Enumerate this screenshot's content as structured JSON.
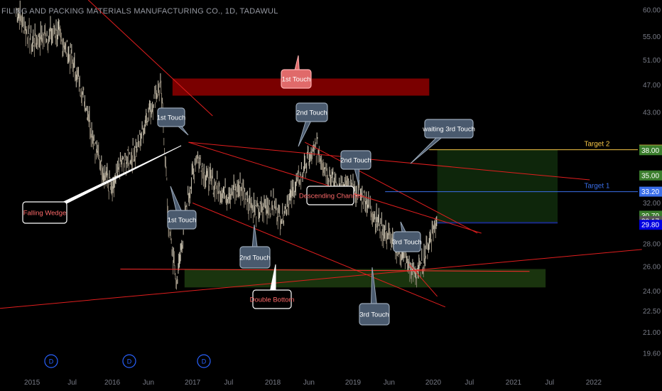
{
  "header": {
    "title": "FILING AND PACKING MATERIALS MANUFACTURING CO., 1D, TADAWUL"
  },
  "colors": {
    "background": "#000000",
    "trendline": "#e01e1e",
    "support_line": "#ff2a2a",
    "resistance_zone": "#7a0000",
    "support_zone": "#1d3a10",
    "target_zone": "#0f2a0c",
    "target2": "#f6c646",
    "target1": "#3a6ee8",
    "callout_dark": "#4a5a6e",
    "callout_red": "#e06a6a",
    "callout_white": "#ffffff"
  },
  "chart_data": {
    "type": "line",
    "title": "FILING AND PACKING MATERIALS MANUFACTURING CO., 1D, TADAWUL",
    "x_ticks": [
      "2015",
      "Jul",
      "2016",
      "Jun",
      "2017",
      "Jul",
      "2018",
      "Jun",
      "2019",
      "Jun",
      "2020",
      "Jul",
      "2021",
      "Jul",
      "2022"
    ],
    "y_ticks": [
      "60.00",
      "55.00",
      "51.00",
      "47.00",
      "43.00",
      "38.00",
      "35.00",
      "32.00",
      "30.00",
      "28.00",
      "26.00",
      "24.00",
      "22.50",
      "21.00",
      "19.60"
    ],
    "ylim": [
      18.5,
      62
    ],
    "log_scale": true,
    "grid": false,
    "price_x": [
      2014.8,
      2015.0,
      2015.3,
      2015.5,
      2015.65,
      2015.8,
      2016.0,
      2016.1,
      2016.3,
      2016.45,
      2016.6,
      2016.7,
      2016.8,
      2016.9,
      2017.05,
      2017.2,
      2017.4,
      2017.6,
      2017.8,
      2018.0,
      2018.1,
      2018.25,
      2018.4,
      2018.55,
      2018.65,
      2018.8,
      2019.0,
      2019.15,
      2019.3,
      2019.45,
      2019.6,
      2019.75,
      2019.85,
      2019.92,
      2020.0,
      2020.05
    ],
    "price_y": [
      60.0,
      54.0,
      56.0,
      51.0,
      45.0,
      38.0,
      33.0,
      36.0,
      38.0,
      43.0,
      47.0,
      30.0,
      24.5,
      30.0,
      37.5,
      34.5,
      33.0,
      33.5,
      31.0,
      32.0,
      30.5,
      33.0,
      36.0,
      38.5,
      36.0,
      33.5,
      33.5,
      32.5,
      30.0,
      28.5,
      27.0,
      25.5,
      25.8,
      27.5,
      29.5,
      30.2
    ],
    "annotations": {
      "target2_label": "Target 2",
      "target1_label": "Target 1",
      "price_tags": [
        {
          "text": "38.06",
          "value": 38.06,
          "color": "#f6c646",
          "text_color": "#000000"
        },
        {
          "text": "38.00",
          "value": 38.0,
          "color": "#3a7d2c",
          "text_color": "#ffffff"
        },
        {
          "text": "35.00",
          "value": 35.0,
          "color": "#3a7d2c",
          "text_color": "#ffffff"
        },
        {
          "text": "33.20",
          "value": 33.2,
          "color": "#3a6ee8",
          "text_color": "#ffffff"
        },
        {
          "text": "30.70",
          "value": 30.7,
          "color": "#3a7d2c",
          "text_color": "#ffffff"
        },
        {
          "text": "30.17",
          "value": 30.17,
          "color": "#555555",
          "text_color": "#ffffff"
        },
        {
          "text": "29.80",
          "value": 29.8,
          "color": "#0000e0",
          "text_color": "#ffffff"
        }
      ],
      "callouts": [
        {
          "text": "1st Touch",
          "style": "dark"
        },
        {
          "text": "1st Touch",
          "style": "red"
        },
        {
          "text": "2nd Touch",
          "style": "dark"
        },
        {
          "text": "waiting 3rd Touch",
          "style": "dark"
        },
        {
          "text": "2nd Touch",
          "style": "dark"
        },
        {
          "text": "Descending Channel",
          "style": "outline"
        },
        {
          "text": "Falling Wedge",
          "style": "outline"
        },
        {
          "text": "1st Touch",
          "style": "dark"
        },
        {
          "text": "2nd Touch",
          "style": "dark"
        },
        {
          "text": "3rd Touch",
          "style": "dark"
        },
        {
          "text": "Double Bottom",
          "style": "outline"
        },
        {
          "text": "3rd Touch",
          "style": "dark"
        }
      ],
      "event_markers": [
        "D",
        "D",
        "D"
      ]
    }
  }
}
